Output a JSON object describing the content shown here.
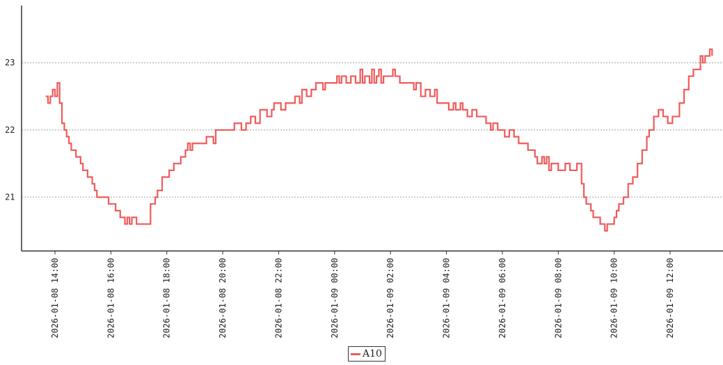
{
  "chart_data": {
    "type": "line",
    "title": "",
    "xlabel": "",
    "ylabel": "",
    "x_range": [
      "2026-01-08 13:00",
      "2026-01-09 14:00"
    ],
    "ylim": [
      20.2,
      23.85
    ],
    "grid": {
      "y": true,
      "x": false
    },
    "legend_position": "bottom-center",
    "y_ticks": [
      21,
      22,
      23
    ],
    "x_ticks": [
      "2026-01-08 14:00",
      "2026-01-08 16:00",
      "2026-01-08 18:00",
      "2026-01-08 20:00",
      "2026-01-08 22:00",
      "2026-01-09 00:00",
      "2026-01-09 02:00",
      "2026-01-09 04:00",
      "2026-01-09 06:00",
      "2026-01-09 08:00",
      "2026-01-09 10:00",
      "2026-01-09 12:00"
    ],
    "series": [
      {
        "name": "A10",
        "color": "#f05a5a",
        "points": [
          [
            "2026-01-08 13:40",
            22.5
          ],
          [
            "2026-01-08 13:45",
            22.4
          ],
          [
            "2026-01-08 13:50",
            22.5
          ],
          [
            "2026-01-08 13:55",
            22.6
          ],
          [
            "2026-01-08 14:00",
            22.5
          ],
          [
            "2026-01-08 14:05",
            22.7
          ],
          [
            "2026-01-08 14:10",
            22.4
          ],
          [
            "2026-01-08 14:15",
            22.1
          ],
          [
            "2026-01-08 14:20",
            22.0
          ],
          [
            "2026-01-08 14:25",
            21.9
          ],
          [
            "2026-01-08 14:30",
            21.8
          ],
          [
            "2026-01-08 14:35",
            21.7
          ],
          [
            "2026-01-08 14:45",
            21.6
          ],
          [
            "2026-01-08 14:55",
            21.5
          ],
          [
            "2026-01-08 15:00",
            21.4
          ],
          [
            "2026-01-08 15:10",
            21.3
          ],
          [
            "2026-01-08 15:20",
            21.2
          ],
          [
            "2026-01-08 15:25",
            21.1
          ],
          [
            "2026-01-08 15:30",
            21.0
          ],
          [
            "2026-01-08 15:45",
            21.0
          ],
          [
            "2026-01-08 15:55",
            20.9
          ],
          [
            "2026-01-08 16:10",
            20.8
          ],
          [
            "2026-01-08 16:20",
            20.7
          ],
          [
            "2026-01-08 16:30",
            20.6
          ],
          [
            "2026-01-08 16:35",
            20.7
          ],
          [
            "2026-01-08 16:40",
            20.6
          ],
          [
            "2026-01-08 16:45",
            20.7
          ],
          [
            "2026-01-08 16:55",
            20.6
          ],
          [
            "2026-01-08 17:20",
            20.6
          ],
          [
            "2026-01-08 17:25",
            20.9
          ],
          [
            "2026-01-08 17:35",
            21.0
          ],
          [
            "2026-01-08 17:40",
            21.1
          ],
          [
            "2026-01-08 17:50",
            21.3
          ],
          [
            "2026-01-08 18:05",
            21.4
          ],
          [
            "2026-01-08 18:15",
            21.5
          ],
          [
            "2026-01-08 18:30",
            21.6
          ],
          [
            "2026-01-08 18:40",
            21.7
          ],
          [
            "2026-01-08 18:45",
            21.8
          ],
          [
            "2026-01-08 18:50",
            21.7
          ],
          [
            "2026-01-08 18:55",
            21.8
          ],
          [
            "2026-01-08 19:20",
            21.8
          ],
          [
            "2026-01-08 19:25",
            21.9
          ],
          [
            "2026-01-08 19:40",
            21.8
          ],
          [
            "2026-01-08 19:45",
            22.0
          ],
          [
            "2026-01-08 20:20",
            22.0
          ],
          [
            "2026-01-08 20:25",
            22.1
          ],
          [
            "2026-01-08 20:40",
            22.0
          ],
          [
            "2026-01-08 20:50",
            22.1
          ],
          [
            "2026-01-08 21:00",
            22.2
          ],
          [
            "2026-01-08 21:10",
            22.1
          ],
          [
            "2026-01-08 21:20",
            22.3
          ],
          [
            "2026-01-08 21:35",
            22.2
          ],
          [
            "2026-01-08 21:45",
            22.3
          ],
          [
            "2026-01-08 21:50",
            22.4
          ],
          [
            "2026-01-08 22:05",
            22.3
          ],
          [
            "2026-01-08 22:15",
            22.4
          ],
          [
            "2026-01-08 22:35",
            22.5
          ],
          [
            "2026-01-08 22:45",
            22.4
          ],
          [
            "2026-01-08 22:50",
            22.6
          ],
          [
            "2026-01-08 23:00",
            22.5
          ],
          [
            "2026-01-08 23:10",
            22.6
          ],
          [
            "2026-01-08 23:20",
            22.7
          ],
          [
            "2026-01-08 23:35",
            22.6
          ],
          [
            "2026-01-08 23:40",
            22.7
          ],
          [
            "2026-01-09 00:00",
            22.7
          ],
          [
            "2026-01-09 00:05",
            22.8
          ],
          [
            "2026-01-09 00:10",
            22.7
          ],
          [
            "2026-01-09 00:15",
            22.8
          ],
          [
            "2026-01-09 00:25",
            22.7
          ],
          [
            "2026-01-09 00:35",
            22.8
          ],
          [
            "2026-01-09 00:45",
            22.7
          ],
          [
            "2026-01-09 00:55",
            22.9
          ],
          [
            "2026-01-09 01:00",
            22.7
          ],
          [
            "2026-01-09 01:05",
            22.8
          ],
          [
            "2026-01-09 01:15",
            22.7
          ],
          [
            "2026-01-09 01:20",
            22.9
          ],
          [
            "2026-01-09 01:25",
            22.7
          ],
          [
            "2026-01-09 01:30",
            22.8
          ],
          [
            "2026-01-09 01:35",
            22.9
          ],
          [
            "2026-01-09 01:40",
            22.7
          ],
          [
            "2026-01-09 01:45",
            22.8
          ],
          [
            "2026-01-09 02:05",
            22.9
          ],
          [
            "2026-01-09 02:10",
            22.8
          ],
          [
            "2026-01-09 02:20",
            22.7
          ],
          [
            "2026-01-09 02:45",
            22.7
          ],
          [
            "2026-01-09 02:50",
            22.6
          ],
          [
            "2026-01-09 02:55",
            22.7
          ],
          [
            "2026-01-09 03:05",
            22.5
          ],
          [
            "2026-01-09 03:15",
            22.6
          ],
          [
            "2026-01-09 03:25",
            22.5
          ],
          [
            "2026-01-09 03:35",
            22.6
          ],
          [
            "2026-01-09 03:40",
            22.4
          ],
          [
            "2026-01-09 04:05",
            22.3
          ],
          [
            "2026-01-09 04:15",
            22.4
          ],
          [
            "2026-01-09 04:20",
            22.3
          ],
          [
            "2026-01-09 04:30",
            22.4
          ],
          [
            "2026-01-09 04:35",
            22.3
          ],
          [
            "2026-01-09 04:45",
            22.2
          ],
          [
            "2026-01-09 04:55",
            22.3
          ],
          [
            "2026-01-09 05:05",
            22.2
          ],
          [
            "2026-01-09 05:25",
            22.1
          ],
          [
            "2026-01-09 05:35",
            22.0
          ],
          [
            "2026-01-09 05:40",
            22.1
          ],
          [
            "2026-01-09 05:50",
            22.0
          ],
          [
            "2026-01-09 06:05",
            21.9
          ],
          [
            "2026-01-09 06:15",
            22.0
          ],
          [
            "2026-01-09 06:25",
            21.9
          ],
          [
            "2026-01-09 06:35",
            21.8
          ],
          [
            "2026-01-09 06:55",
            21.7
          ],
          [
            "2026-01-09 07:10",
            21.6
          ],
          [
            "2026-01-09 07:15",
            21.5
          ],
          [
            "2026-01-09 07:25",
            21.6
          ],
          [
            "2026-01-09 07:30",
            21.5
          ],
          [
            "2026-01-09 07:35",
            21.6
          ],
          [
            "2026-01-09 07:40",
            21.4
          ],
          [
            "2026-01-09 07:45",
            21.5
          ],
          [
            "2026-01-09 08:00",
            21.4
          ],
          [
            "2026-01-09 08:15",
            21.5
          ],
          [
            "2026-01-09 08:25",
            21.4
          ],
          [
            "2026-01-09 08:40",
            21.5
          ],
          [
            "2026-01-09 08:50",
            21.2
          ],
          [
            "2026-01-09 08:55",
            21.0
          ],
          [
            "2026-01-09 09:00",
            20.9
          ],
          [
            "2026-01-09 09:10",
            20.8
          ],
          [
            "2026-01-09 09:15",
            20.7
          ],
          [
            "2026-01-09 09:30",
            20.6
          ],
          [
            "2026-01-09 09:40",
            20.5
          ],
          [
            "2026-01-09 09:45",
            20.6
          ],
          [
            "2026-01-09 10:00",
            20.7
          ],
          [
            "2026-01-09 10:05",
            20.8
          ],
          [
            "2026-01-09 10:10",
            20.9
          ],
          [
            "2026-01-09 10:20",
            21.0
          ],
          [
            "2026-01-09 10:30",
            21.2
          ],
          [
            "2026-01-09 10:40",
            21.3
          ],
          [
            "2026-01-09 10:50",
            21.5
          ],
          [
            "2026-01-09 11:00",
            21.7
          ],
          [
            "2026-01-09 11:10",
            21.9
          ],
          [
            "2026-01-09 11:15",
            22.0
          ],
          [
            "2026-01-09 11:25",
            22.2
          ],
          [
            "2026-01-09 11:35",
            22.3
          ],
          [
            "2026-01-09 11:45",
            22.2
          ],
          [
            "2026-01-09 11:55",
            22.1
          ],
          [
            "2026-01-09 12:05",
            22.2
          ],
          [
            "2026-01-09 12:20",
            22.4
          ],
          [
            "2026-01-09 12:30",
            22.6
          ],
          [
            "2026-01-09 12:40",
            22.8
          ],
          [
            "2026-01-09 12:50",
            22.9
          ],
          [
            "2026-01-09 13:05",
            23.1
          ],
          [
            "2026-01-09 13:10",
            23.0
          ],
          [
            "2026-01-09 13:15",
            23.1
          ],
          [
            "2026-01-09 13:25",
            23.2
          ],
          [
            "2026-01-09 13:30",
            23.1
          ]
        ]
      }
    ]
  }
}
